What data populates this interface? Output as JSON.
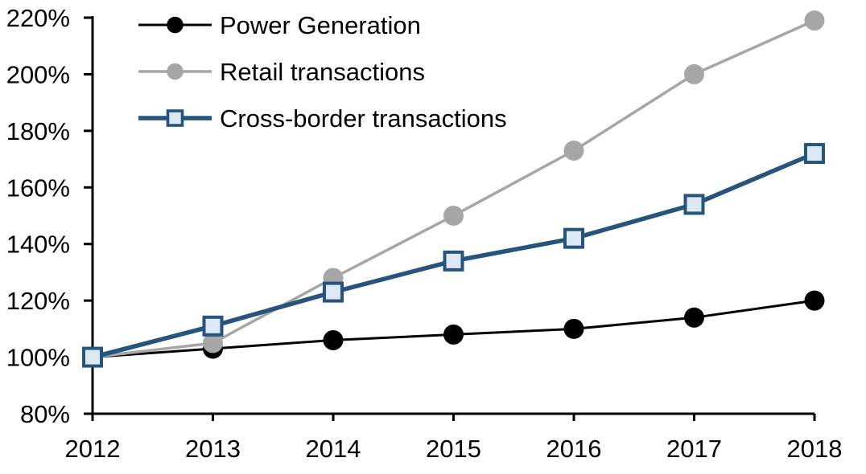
{
  "chart_data": {
    "type": "line",
    "title": "",
    "x": [
      "2012",
      "2013",
      "2014",
      "2015",
      "2016",
      "2017",
      "2018"
    ],
    "series": [
      {
        "name": "Power Generation",
        "values": [
          100,
          103,
          106,
          108,
          110,
          114,
          120
        ],
        "color": "#000000",
        "line_width": 3,
        "marker": "circle",
        "marker_fill": "#000000",
        "marker_stroke": "#000000"
      },
      {
        "name": "Retail transactions",
        "values": [
          100,
          105,
          128,
          150,
          173,
          200,
          219
        ],
        "color": "#a6a6a6",
        "line_width": 3.5,
        "marker": "circle",
        "marker_fill": "#a6a6a6",
        "marker_stroke": "#a6a6a6"
      },
      {
        "name": "Cross-border transactions",
        "values": [
          100,
          111,
          123,
          134,
          142,
          154,
          172
        ],
        "color": "#26547c",
        "line_width": 5.5,
        "marker": "square",
        "marker_fill": "#dce9f5",
        "marker_stroke": "#26547c"
      }
    ],
    "ylim": [
      80,
      220
    ],
    "ytick_step": 20,
    "ytick_labels": [
      "80%",
      "100%",
      "120%",
      "140%",
      "160%",
      "180%",
      "200%",
      "220%"
    ],
    "xtick_labels": [
      "2012",
      "2013",
      "2014",
      "2015",
      "2016",
      "2017",
      "2018"
    ],
    "axis_color": "#000000",
    "grid": false,
    "legend_position": "top-left"
  }
}
